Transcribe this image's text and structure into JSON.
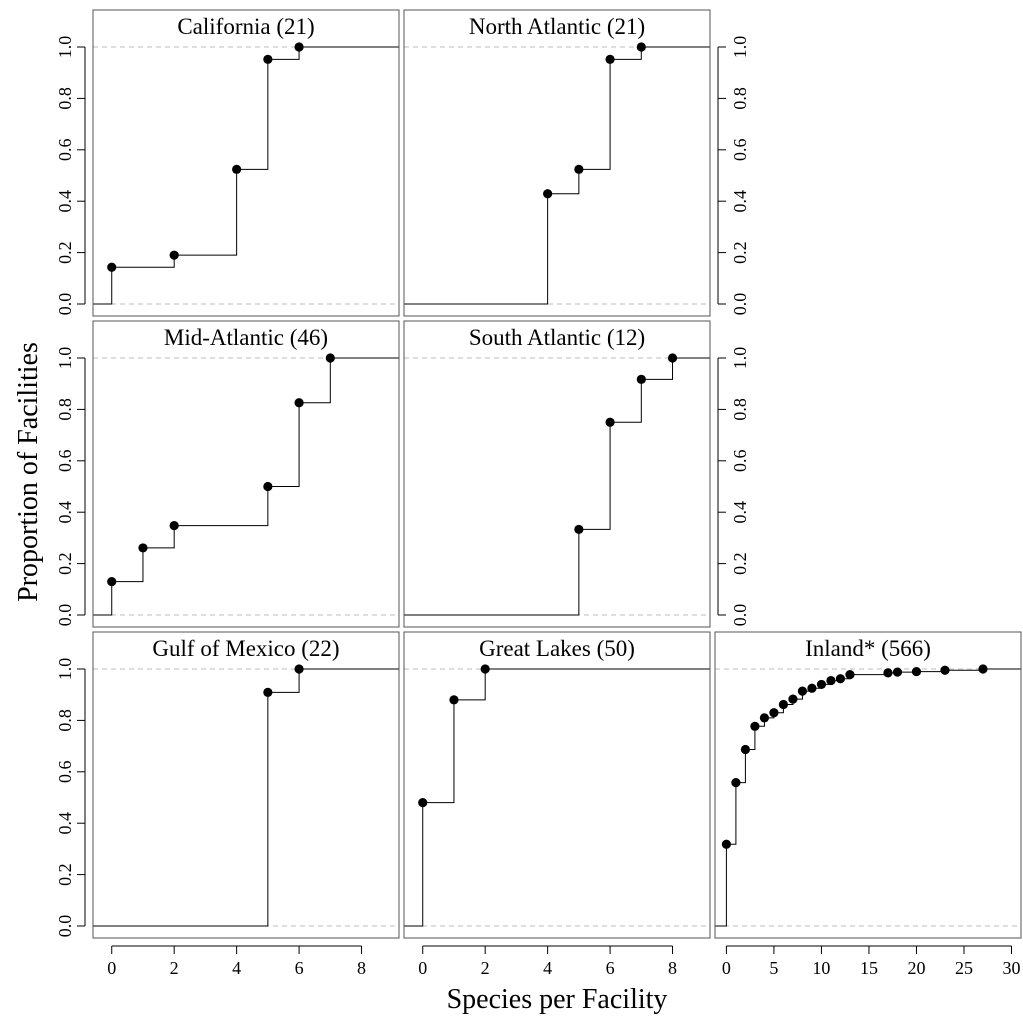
{
  "figure": {
    "ylabel": "Proportion of Facilities",
    "xlabel": "Species per Facility"
  },
  "chart_data": [
    {
      "type": "step",
      "title": "California (21)",
      "xlim": [
        -0.6,
        9.2
      ],
      "ylim": [
        0,
        1
      ],
      "xticks": [
        0,
        2,
        4,
        6,
        8
      ],
      "yticks": [
        0.0,
        0.2,
        0.4,
        0.6,
        0.8,
        1.0
      ],
      "x": [
        0,
        2,
        4,
        5,
        6
      ],
      "y": [
        0.143,
        0.19,
        0.524,
        0.952,
        1.0
      ]
    },
    {
      "type": "step",
      "title": "North Atlantic (21)",
      "xlim": [
        -0.6,
        9.2
      ],
      "ylim": [
        0,
        1
      ],
      "xticks": [
        0,
        2,
        4,
        6,
        8
      ],
      "yticks": [
        0.0,
        0.2,
        0.4,
        0.6,
        0.8,
        1.0
      ],
      "x": [
        4,
        5,
        6,
        7
      ],
      "y": [
        0.429,
        0.524,
        0.952,
        1.0
      ]
    },
    {
      "type": "step",
      "title": "Mid-Atlantic (46)",
      "xlim": [
        -0.6,
        9.2
      ],
      "ylim": [
        0,
        1
      ],
      "xticks": [
        0,
        2,
        4,
        6,
        8
      ],
      "yticks": [
        0.0,
        0.2,
        0.4,
        0.6,
        0.8,
        1.0
      ],
      "x": [
        0,
        1,
        2,
        5,
        6,
        7
      ],
      "y": [
        0.13,
        0.261,
        0.348,
        0.5,
        0.826,
        1.0
      ]
    },
    {
      "type": "step",
      "title": "South Atlantic (12)",
      "xlim": [
        -0.6,
        9.2
      ],
      "ylim": [
        0,
        1
      ],
      "xticks": [
        0,
        2,
        4,
        6,
        8
      ],
      "yticks": [
        0.0,
        0.2,
        0.4,
        0.6,
        0.8,
        1.0
      ],
      "x": [
        5,
        6,
        7,
        8
      ],
      "y": [
        0.333,
        0.75,
        0.917,
        1.0
      ]
    },
    {
      "type": "step",
      "title": "Gulf of Mexico (22)",
      "xlim": [
        -0.6,
        9.2
      ],
      "ylim": [
        0,
        1
      ],
      "xticks": [
        0,
        2,
        4,
        6,
        8
      ],
      "yticks": [
        0.0,
        0.2,
        0.4,
        0.6,
        0.8,
        1.0
      ],
      "x": [
        5,
        6
      ],
      "y": [
        0.909,
        1.0
      ]
    },
    {
      "type": "step",
      "title": "Great Lakes (50)",
      "xlim": [
        -0.6,
        9.2
      ],
      "ylim": [
        0,
        1
      ],
      "xticks": [
        0,
        2,
        4,
        6,
        8
      ],
      "yticks": [
        0.0,
        0.2,
        0.4,
        0.6,
        0.8,
        1.0
      ],
      "x": [
        0,
        1,
        2
      ],
      "y": [
        0.48,
        0.88,
        1.0
      ]
    },
    {
      "type": "step",
      "title": "Inland* (566)",
      "xlim": [
        -1.2,
        31.0
      ],
      "ylim": [
        0,
        1
      ],
      "xticks": [
        0,
        5,
        10,
        15,
        20,
        25,
        30
      ],
      "yticks": [
        0.0,
        0.2,
        0.4,
        0.6,
        0.8,
        1.0
      ],
      "x": [
        0,
        1,
        2,
        3,
        4,
        5,
        6,
        7,
        8,
        9,
        10,
        11,
        12,
        13,
        17,
        18,
        20,
        23,
        27
      ],
      "y": [
        0.318,
        0.558,
        0.687,
        0.777,
        0.81,
        0.83,
        0.862,
        0.883,
        0.914,
        0.925,
        0.94,
        0.955,
        0.962,
        0.978,
        0.985,
        0.988,
        0.99,
        0.995,
        1.0
      ]
    }
  ]
}
